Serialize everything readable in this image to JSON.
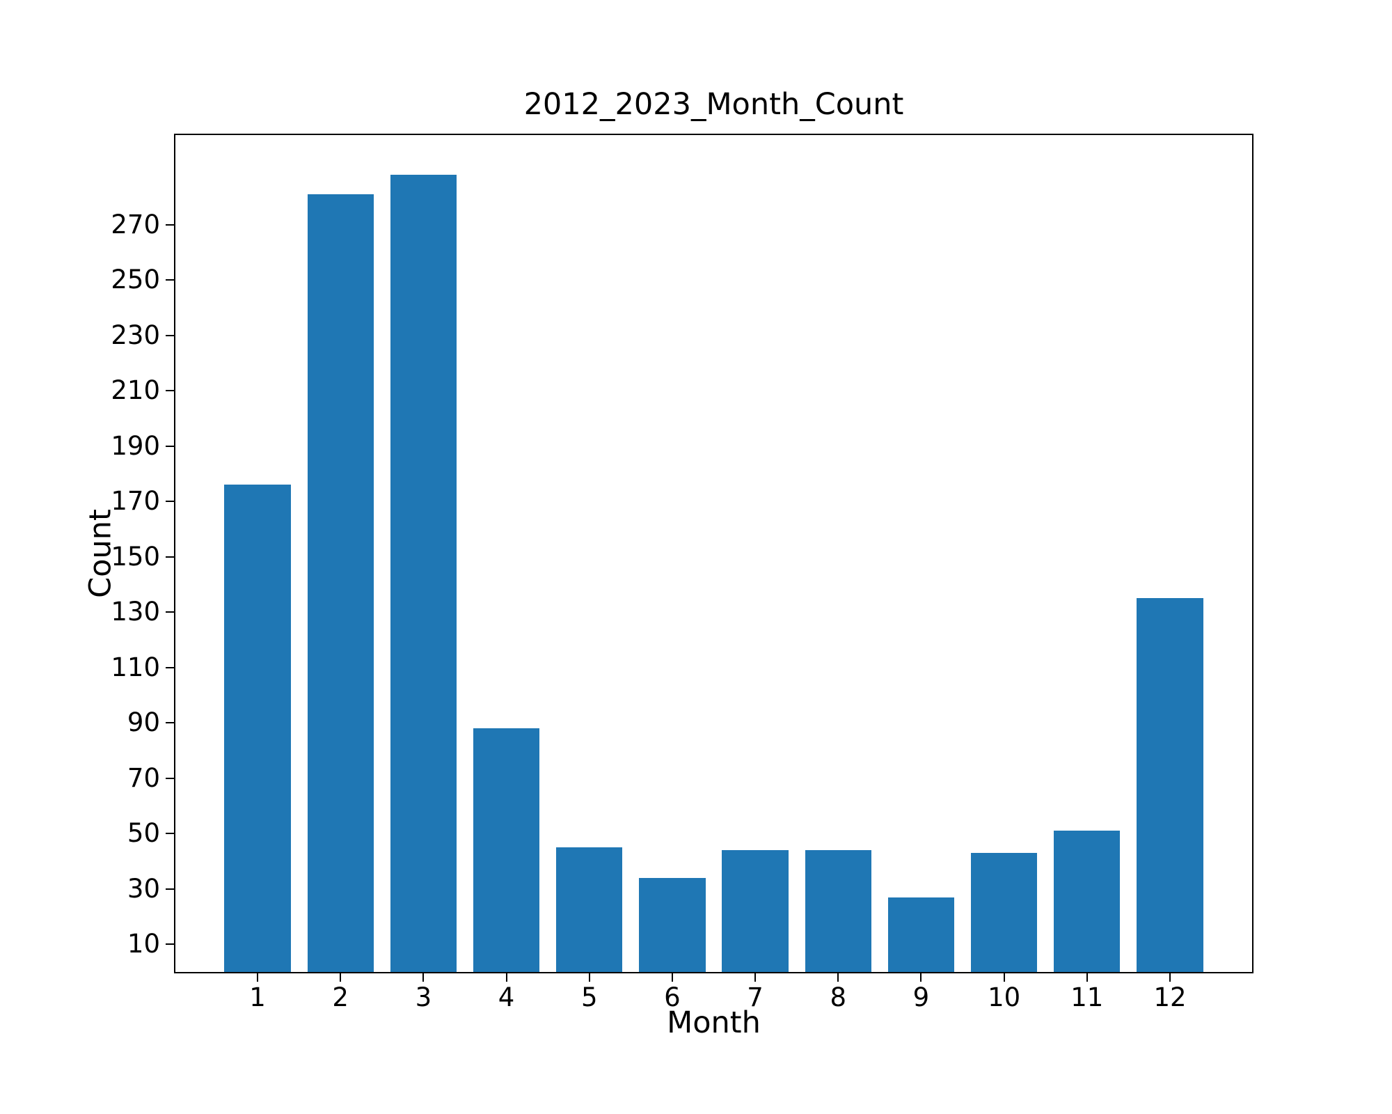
{
  "window": {
    "background": "#ffffff",
    "text_color": "#000000"
  },
  "chart_data": {
    "type": "bar",
    "title": "2012_2023_Month_Count",
    "xlabel": "Month",
    "ylabel": "Count",
    "categories": [
      1,
      2,
      3,
      4,
      5,
      6,
      7,
      8,
      9,
      10,
      11,
      12
    ],
    "values": [
      176,
      281,
      288,
      88,
      45,
      34,
      44,
      44,
      27,
      43,
      51,
      135
    ],
    "bar_color": "#1f77b4",
    "bar_width": 0.8,
    "yticks": [
      10,
      30,
      50,
      70,
      90,
      110,
      130,
      150,
      170,
      190,
      210,
      230,
      250,
      270
    ],
    "ylim": [
      0,
      302.4
    ],
    "xlim": [
      0.01,
      12.99
    ],
    "grid": false,
    "legend_position": "none"
  }
}
